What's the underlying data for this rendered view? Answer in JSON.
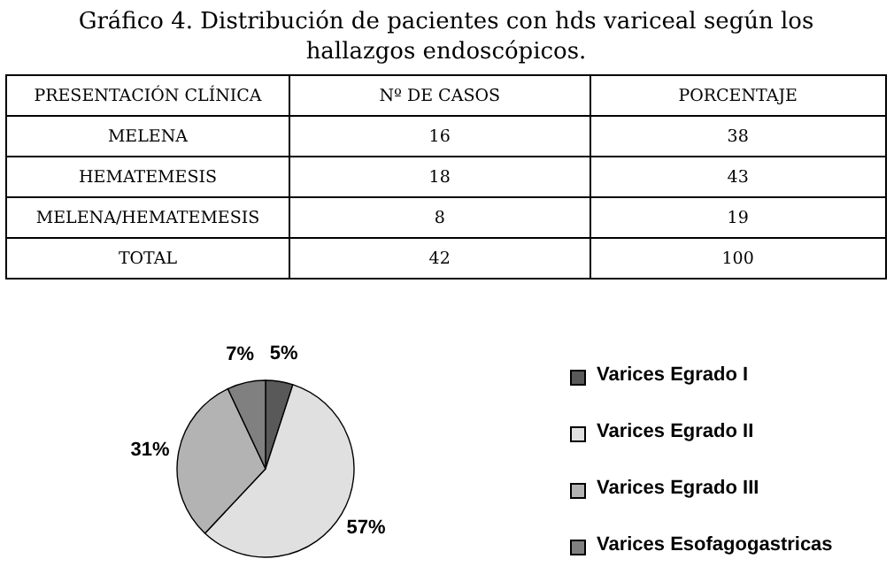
{
  "chart_data": [
    {
      "type": "other",
      "title": "Gráfico 4. Distribución de pacientes con hds variceal según los hallazgos endoscópicos.",
      "xlabel": "PRESENTACIÓN CLÍNICA",
      "categories": [
        "MELENA",
        "HEMATEMESIS",
        "MELENA/HEMATEMESIS",
        "TOTAL"
      ],
      "data_labels": true,
      "series": [
        {
          "name": "Nº DE CASOS",
          "values": [
            16,
            18,
            8,
            42
          ]
        },
        {
          "name": "PORCENTAJE",
          "values": [
            38,
            43,
            19,
            100
          ]
        }
      ]
    },
    {
      "type": "pie",
      "categories": [
        "Varices Egrado I",
        "Varices Egrado II",
        "Varices Egrado III",
        "Varices Esofagogastricas"
      ],
      "values": [
        5,
        57,
        31,
        7
      ],
      "colors": [
        "#595959",
        "#e0e0e0",
        "#b3b3b3",
        "#808080"
      ],
      "value_labels": [
        "5%",
        "57%",
        "31%",
        "7%"
      ],
      "legend": "right"
    }
  ]
}
